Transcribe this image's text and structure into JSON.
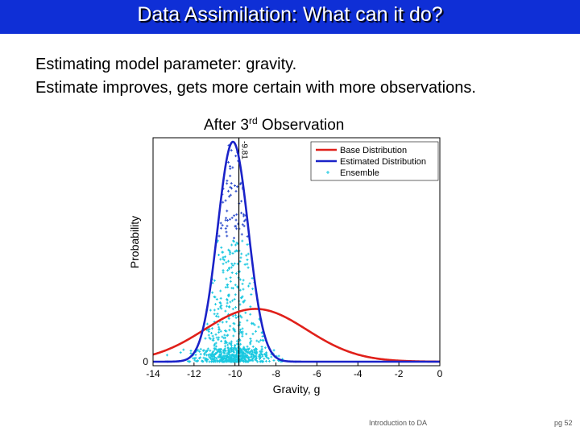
{
  "slide": {
    "title": "Data Assimilation: What can it do?",
    "bullets": [
      "Estimating model parameter: gravity.",
      "Estimate improves, gets more certain with more observations."
    ],
    "chart_title_prefix": "After 3",
    "chart_title_sup": "rd",
    "chart_title_suffix": " Observation",
    "footer_center": "Introduction to DA",
    "footer_right": "pg 52"
  },
  "colors": {
    "title_bar": "#0f2fd6",
    "base": "#e0201a",
    "estimated": "#1a22c8",
    "ensemble": "#19c8e0",
    "ensemble_top": "#2c4ccc"
  },
  "chart_data": {
    "type": "line",
    "xlabel": "Gravity, g",
    "ylabel": "Probability",
    "xlim": [
      -14,
      0
    ],
    "x_ticks": [
      -14,
      -12,
      -10,
      -8,
      -6,
      -4,
      -2,
      0
    ],
    "y_ticks": [
      0
    ],
    "grid": false,
    "legend_position": "top-right",
    "reference_line": {
      "x": -9.81,
      "label": "-9.81"
    },
    "series": [
      {
        "name": "Base Distribution",
        "kind": "gaussian",
        "mean": -9.0,
        "std": 2.5,
        "peak": 0.24,
        "color": "#e0201a"
      },
      {
        "name": "Estimated Distribution",
        "kind": "gaussian",
        "mean": -10.1,
        "std": 0.75,
        "peak": 1.0,
        "color": "#1a22c8"
      },
      {
        "name": "Ensemble",
        "kind": "scatter",
        "color": "#19c8e0"
      }
    ]
  }
}
